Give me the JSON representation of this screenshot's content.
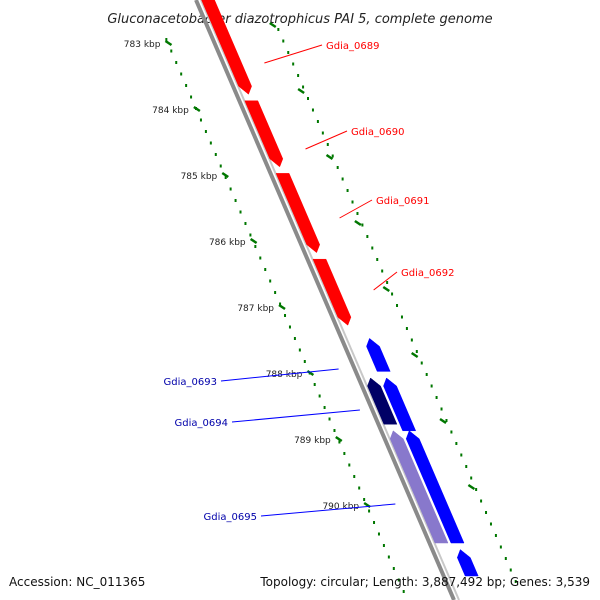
{
  "title": "Gluconacetobacter diazotrophicus PAI 5, complete genome",
  "footer": {
    "accession": "Accession: NC_011365",
    "topology": "Topology: circular; Length: 3,887,492 bp; Genes: 3,539"
  },
  "colors": {
    "forward_gene": "#ff0000",
    "reverse_gene": "#0000ff",
    "reverse_gene_dark": "#000066",
    "reverse_gene_light": "#8878cc",
    "backbone": "#888888",
    "tick": "#007700"
  },
  "ruler": {
    "ticks": [
      {
        "label": "783 kbp",
        "kbp": 783
      },
      {
        "label": "784 kbp",
        "kbp": 784
      },
      {
        "label": "785 kbp",
        "kbp": 785
      },
      {
        "label": "786 kbp",
        "kbp": 786
      },
      {
        "label": "787 kbp",
        "kbp": 787
      },
      {
        "label": "788 kbp",
        "kbp": 788
      },
      {
        "label": "789 kbp",
        "kbp": 789
      },
      {
        "label": "790 kbp",
        "kbp": 790
      }
    ]
  },
  "genes": [
    {
      "name": "Gdia_0689",
      "strand": "forward",
      "start_kbp": 782.5,
      "end_kbp": 784.2,
      "shade": "normal"
    },
    {
      "name": "Gdia_0690",
      "strand": "forward",
      "start_kbp": 784.3,
      "end_kbp": 785.3,
      "shade": "normal"
    },
    {
      "name": "Gdia_0691",
      "strand": "forward",
      "start_kbp": 785.4,
      "end_kbp": 786.6,
      "shade": "normal"
    },
    {
      "name": "Gdia_0692",
      "strand": "forward",
      "start_kbp": 786.7,
      "end_kbp": 787.7,
      "shade": "normal"
    },
    {
      "name": "Gdia_0693",
      "strand": "reverse",
      "start_kbp": 787.9,
      "end_kbp": 788.4,
      "shade": "normal"
    },
    {
      "name": "Gdia_0694",
      "strand": "reverse",
      "start_kbp": 788.5,
      "end_kbp": 789.3,
      "shade": "normal"
    },
    {
      "name": "Gdia_0695",
      "strand": "reverse",
      "start_kbp": 789.3,
      "end_kbp": 791.0,
      "shade": "normal"
    },
    {
      "name": "",
      "strand": "reverse",
      "start_kbp": 788.5,
      "end_kbp": 789.2,
      "shade": "dark"
    },
    {
      "name": "",
      "strand": "reverse",
      "start_kbp": 789.3,
      "end_kbp": 791.0,
      "shade": "light"
    },
    {
      "name": "",
      "strand": "reverse",
      "start_kbp": 791.1,
      "end_kbp": 791.5,
      "shade": "normal"
    }
  ]
}
